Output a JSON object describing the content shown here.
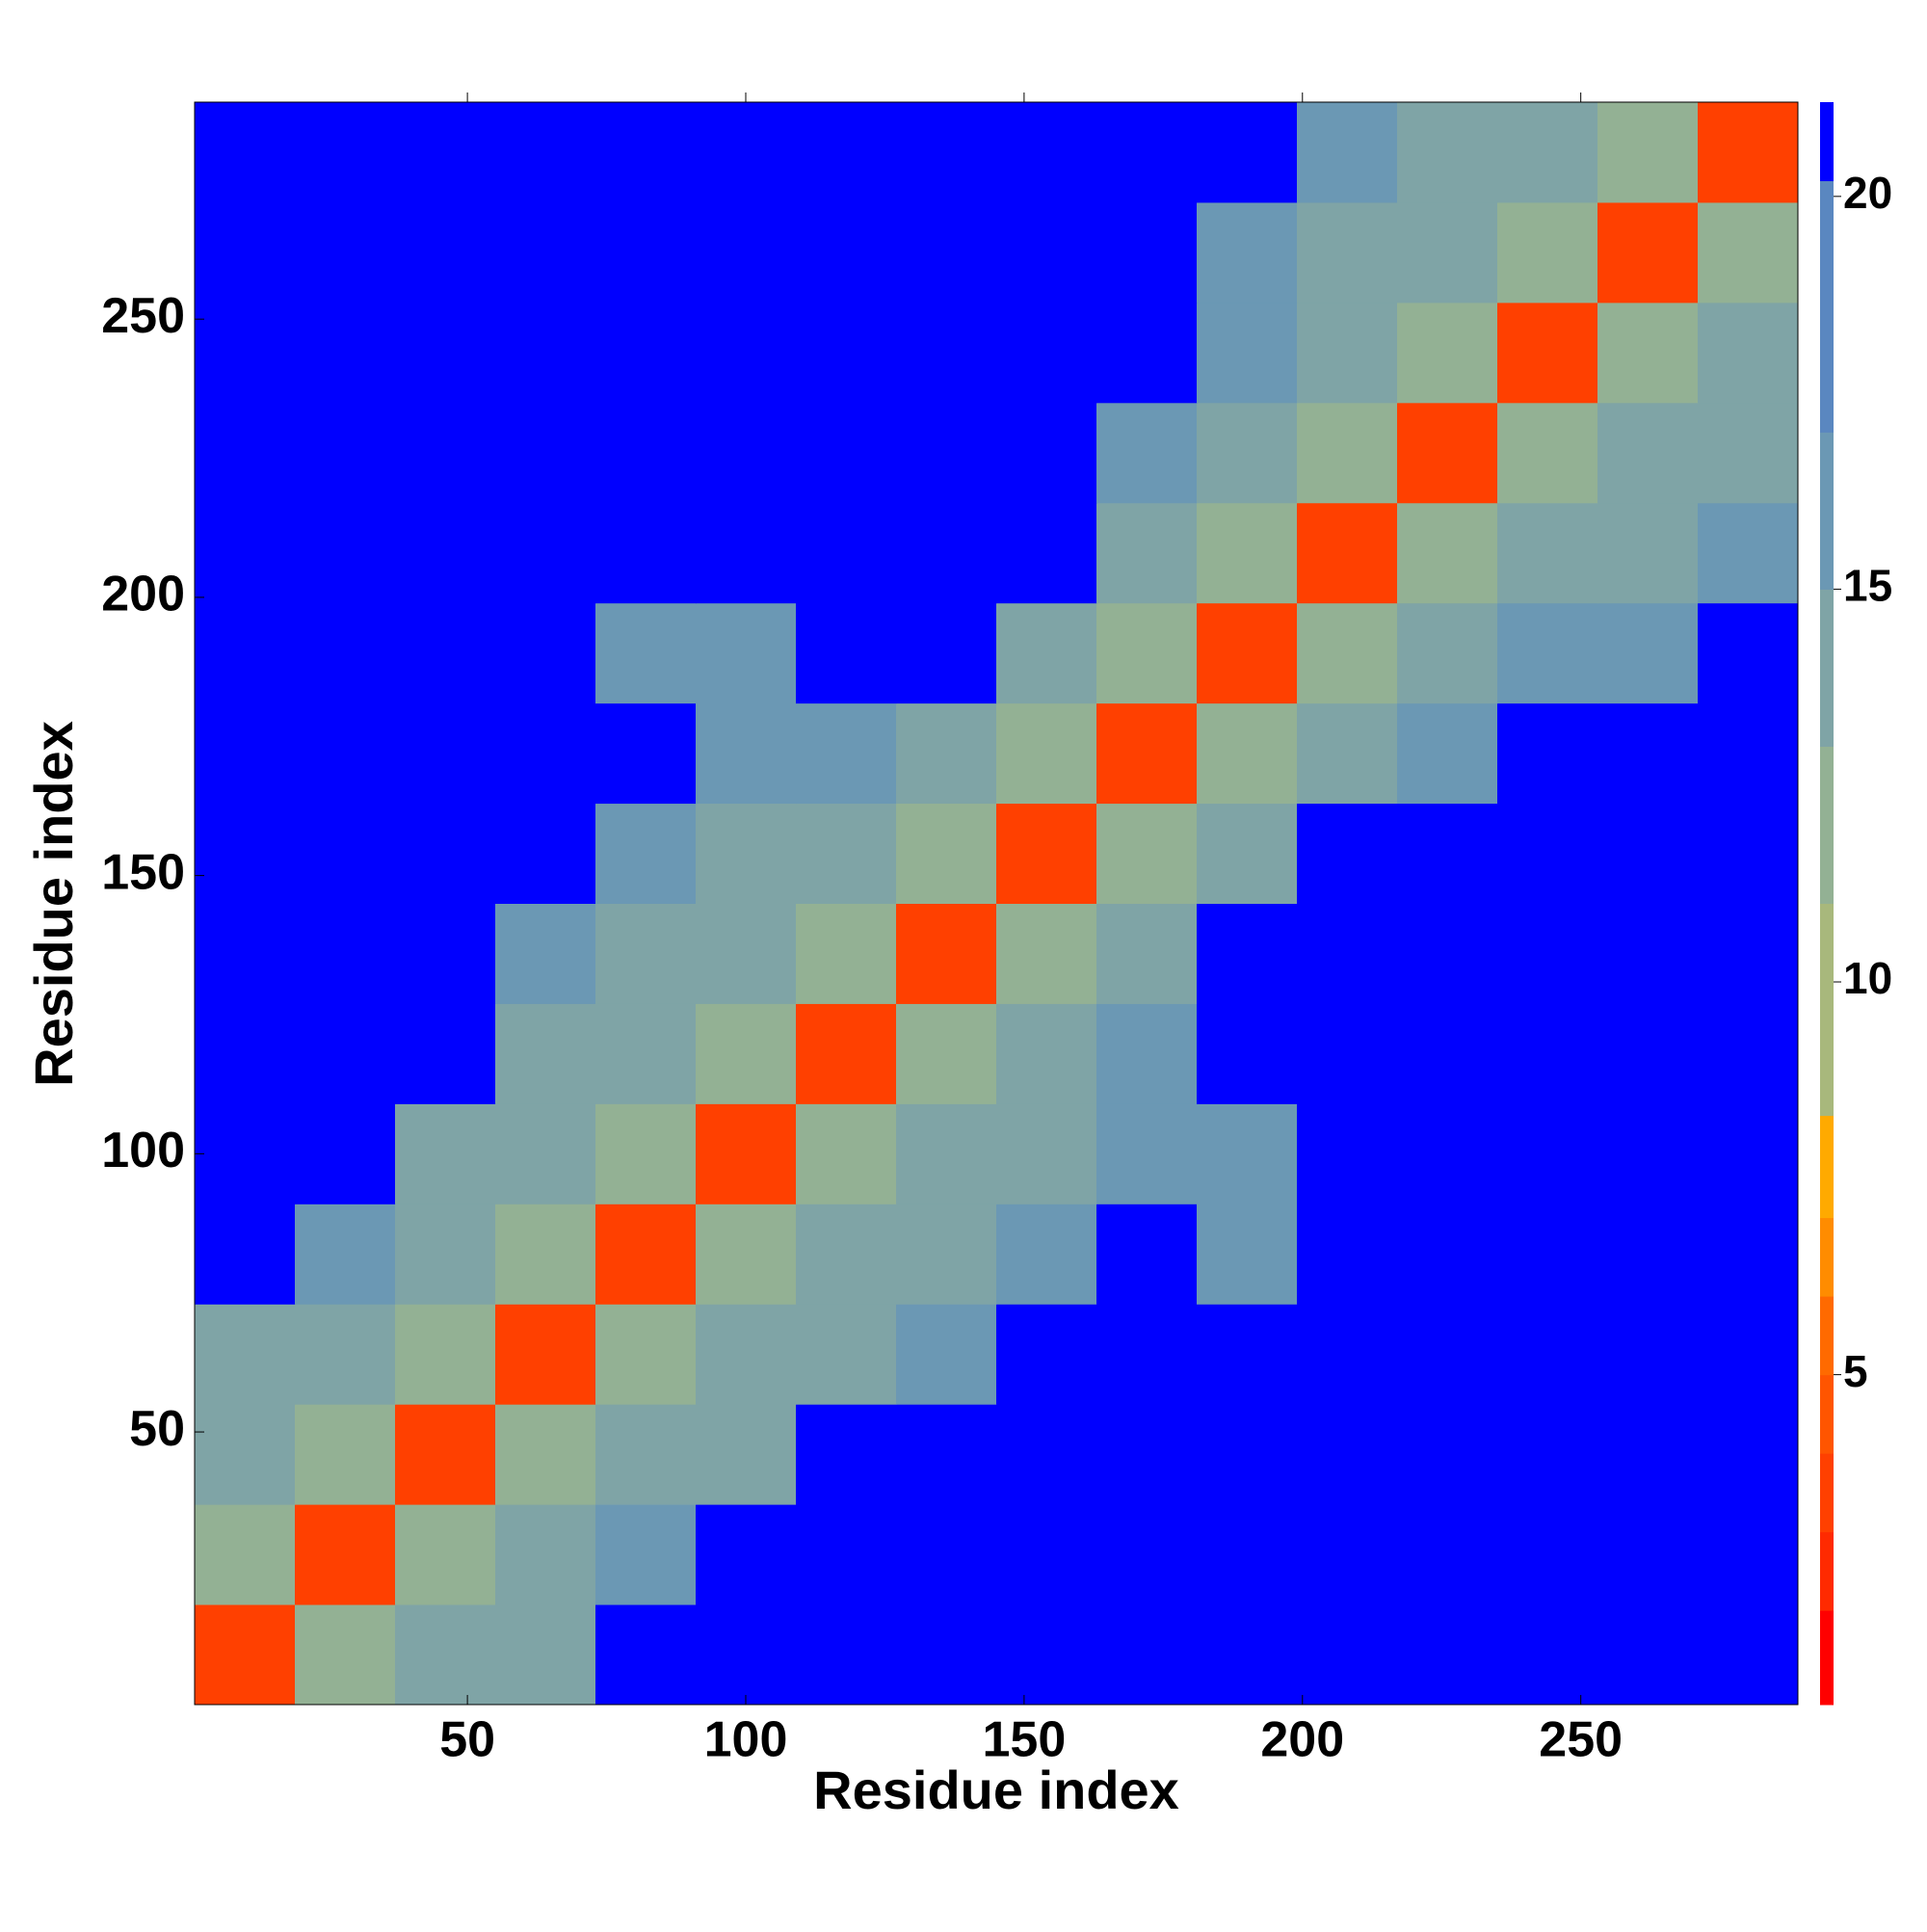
{
  "chart_data": {
    "type": "heatmap",
    "xlabel": "Residue index",
    "ylabel": "Residue index",
    "bins": [
      1,
      19,
      37,
      55,
      73,
      91,
      109,
      127,
      145,
      163,
      181,
      199,
      217,
      235,
      253,
      271,
      289
    ],
    "values": [
      [
        4,
        12,
        15,
        15,
        21,
        21,
        21,
        21,
        21,
        21,
        21,
        21,
        21,
        21,
        21,
        21
      ],
      [
        12,
        4,
        12,
        14,
        17,
        21,
        21,
        21,
        21,
        21,
        21,
        21,
        21,
        21,
        21,
        21
      ],
      [
        15,
        12,
        4,
        12,
        14,
        15,
        21,
        21,
        21,
        21,
        21,
        21,
        21,
        21,
        21,
        21
      ],
      [
        15,
        14,
        12,
        4,
        12,
        14,
        15,
        17,
        21,
        21,
        21,
        21,
        21,
        21,
        21,
        21
      ],
      [
        21,
        17,
        14,
        12,
        4,
        12,
        14,
        15,
        17,
        21,
        17,
        21,
        21,
        21,
        21,
        21
      ],
      [
        21,
        21,
        15,
        14,
        12,
        4,
        12,
        14,
        15,
        17,
        17,
        21,
        21,
        21,
        21,
        21
      ],
      [
        21,
        21,
        21,
        15,
        14,
        12,
        4,
        12,
        14,
        17,
        21,
        21,
        21,
        21,
        21,
        21
      ],
      [
        21,
        21,
        21,
        17,
        15,
        14,
        12,
        4,
        12,
        15,
        21,
        21,
        21,
        21,
        21,
        21
      ],
      [
        21,
        21,
        21,
        21,
        17,
        15,
        14,
        12,
        4,
        12,
        14,
        21,
        21,
        21,
        21,
        21
      ],
      [
        21,
        21,
        21,
        21,
        21,
        17,
        17,
        15,
        12,
        4,
        12,
        15,
        17,
        21,
        21,
        21
      ],
      [
        21,
        21,
        21,
        21,
        17,
        17,
        21,
        21,
        14,
        12,
        4,
        12,
        15,
        16,
        17,
        21
      ],
      [
        21,
        21,
        21,
        21,
        21,
        21,
        21,
        21,
        21,
        15,
        12,
        4,
        12,
        14,
        15,
        17
      ],
      [
        21,
        21,
        21,
        21,
        21,
        21,
        21,
        21,
        21,
        17,
        15,
        12,
        4,
        12,
        14,
        15
      ],
      [
        21,
        21,
        21,
        21,
        21,
        21,
        21,
        21,
        21,
        21,
        16,
        14,
        12,
        4,
        12,
        14
      ],
      [
        21,
        21,
        21,
        21,
        21,
        21,
        21,
        21,
        21,
        21,
        17,
        15,
        14,
        12,
        4,
        12
      ],
      [
        21,
        21,
        21,
        21,
        21,
        21,
        21,
        21,
        21,
        21,
        21,
        17,
        15,
        14,
        12,
        4
      ]
    ],
    "xlim": [
      1,
      289
    ],
    "ylim": [
      1,
      289
    ],
    "xticks": [
      50,
      100,
      150,
      200,
      250
    ],
    "yticks": [
      50,
      100,
      150,
      200,
      250
    ],
    "zlim": [
      0.8,
      21.2
    ],
    "zticks": [
      5,
      10,
      15,
      20
    ],
    "colorscale": [
      {
        "max": 2,
        "color": "#ff0000"
      },
      {
        "max": 3,
        "color": "#ff2a00"
      },
      {
        "max": 4,
        "color": "#ff4000"
      },
      {
        "max": 5,
        "color": "#ff5500"
      },
      {
        "max": 6,
        "color": "#ff6a00"
      },
      {
        "max": 7,
        "color": "#ff8c00"
      },
      {
        "max": 8.3,
        "color": "#ffaa00"
      },
      {
        "max": 11,
        "color": "#a8b87c"
      },
      {
        "max": 13,
        "color": "#93b194"
      },
      {
        "max": 15,
        "color": "#7fa4a6"
      },
      {
        "max": 17,
        "color": "#6b98b4"
      },
      {
        "max": 20.2,
        "color": "#5a87c0"
      },
      {
        "max": 21.2,
        "color": "#0000ff"
      }
    ]
  }
}
